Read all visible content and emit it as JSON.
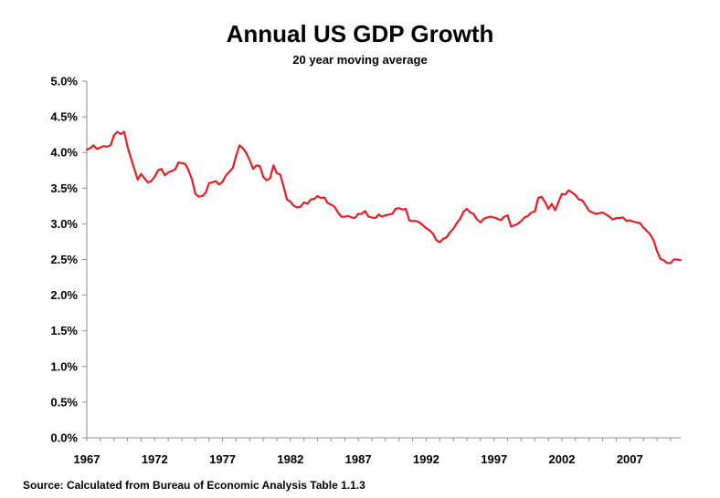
{
  "chart_data": {
    "type": "line",
    "title": "Annual US GDP Growth",
    "subtitle": "20 year moving average",
    "source": "Source: Calculated from Bureau of Economic Analysis Table  1.1.3",
    "xlabel": "",
    "ylabel": "",
    "xlim": [
      1967,
      2010.75
    ],
    "ylim": [
      0,
      5
    ],
    "grid": false,
    "line_color": "#e31e24",
    "x_ticks": [
      1967,
      1972,
      1977,
      1982,
      1987,
      1992,
      1997,
      2002,
      2007
    ],
    "x_tick_labels": [
      "1967",
      "1972",
      "1977",
      "1982",
      "1987",
      "1992",
      "1997",
      "2002",
      "2007"
    ],
    "y_ticks": [
      0,
      0.5,
      1,
      1.5,
      2,
      2.5,
      3,
      3.5,
      4,
      4.5,
      5
    ],
    "y_tick_labels": [
      "0.0%",
      "0.5%",
      "1.0%",
      "1.5%",
      "2.0%",
      "2.5%",
      "3.0%",
      "3.5%",
      "4.0%",
      "4.5%",
      "5.0%"
    ],
    "series": [
      {
        "name": "20 year moving average",
        "x": [
          1967.0,
          1967.25,
          1967.5,
          1967.75,
          1968.0,
          1968.25,
          1968.5,
          1968.75,
          1969.0,
          1969.25,
          1969.5,
          1969.75,
          1970.0,
          1970.25,
          1970.5,
          1970.75,
          1971.0,
          1971.25,
          1971.5,
          1971.75,
          1972.0,
          1972.25,
          1972.5,
          1972.75,
          1973.0,
          1973.25,
          1973.5,
          1973.75,
          1974.0,
          1974.25,
          1974.5,
          1974.75,
          1975.0,
          1975.25,
          1975.5,
          1975.75,
          1976.0,
          1976.25,
          1976.5,
          1976.75,
          1977.0,
          1977.25,
          1977.5,
          1977.75,
          1978.0,
          1978.25,
          1978.5,
          1978.75,
          1979.0,
          1979.25,
          1979.5,
          1979.75,
          1980.0,
          1980.25,
          1980.5,
          1980.75,
          1981.0,
          1981.25,
          1981.5,
          1981.75,
          1982.0,
          1982.25,
          1982.5,
          1982.75,
          1983.0,
          1983.25,
          1983.5,
          1983.75,
          1984.0,
          1984.25,
          1984.5,
          1984.75,
          1985.0,
          1985.25,
          1985.5,
          1985.75,
          1986.0,
          1986.25,
          1986.5,
          1986.75,
          1987.0,
          1987.25,
          1987.5,
          1987.75,
          1988.0,
          1988.25,
          1988.5,
          1988.75,
          1989.0,
          1989.25,
          1989.5,
          1989.75,
          1990.0,
          1990.25,
          1990.5,
          1990.75,
          1991.0,
          1991.25,
          1991.5,
          1991.75,
          1992.0,
          1992.25,
          1992.5,
          1992.75,
          1993.0,
          1993.25,
          1993.5,
          1993.75,
          1994.0,
          1994.25,
          1994.5,
          1994.75,
          1995.0,
          1995.25,
          1995.5,
          1995.75,
          1996.0,
          1996.25,
          1996.5,
          1996.75,
          1997.0,
          1997.25,
          1997.5,
          1997.75,
          1998.0,
          1998.25,
          1998.5,
          1998.75,
          1999.0,
          1999.25,
          1999.5,
          1999.75,
          2000.0,
          2000.25,
          2000.5,
          2000.75,
          2001.0,
          2001.25,
          2001.5,
          2001.75,
          2002.0,
          2002.25,
          2002.5,
          2002.75,
          2003.0,
          2003.25,
          2003.5,
          2003.75,
          2004.0,
          2004.25,
          2004.5,
          2004.75,
          2005.0,
          2005.25,
          2005.5,
          2005.75,
          2006.0,
          2006.25,
          2006.5,
          2006.75,
          2007.0,
          2007.25,
          2007.5,
          2007.75,
          2008.0,
          2008.25,
          2008.5,
          2008.75,
          2009.0,
          2009.25,
          2009.5,
          2009.75,
          2010.0,
          2010.25,
          2010.5,
          2010.75
        ],
        "y": [
          4.04,
          4.06,
          4.1,
          4.05,
          4.07,
          4.09,
          4.08,
          4.1,
          4.24,
          4.29,
          4.26,
          4.29,
          4.08,
          3.92,
          3.77,
          3.62,
          3.7,
          3.64,
          3.58,
          3.6,
          3.66,
          3.75,
          3.77,
          3.68,
          3.72,
          3.74,
          3.76,
          3.86,
          3.85,
          3.84,
          3.75,
          3.62,
          3.42,
          3.38,
          3.39,
          3.43,
          3.57,
          3.58,
          3.6,
          3.55,
          3.59,
          3.68,
          3.73,
          3.78,
          3.95,
          4.1,
          4.06,
          3.99,
          3.89,
          3.77,
          3.82,
          3.81,
          3.66,
          3.61,
          3.64,
          3.82,
          3.71,
          3.69,
          3.52,
          3.34,
          3.31,
          3.25,
          3.23,
          3.24,
          3.3,
          3.28,
          3.34,
          3.35,
          3.39,
          3.36,
          3.37,
          3.29,
          3.27,
          3.24,
          3.16,
          3.1,
          3.1,
          3.11,
          3.09,
          3.08,
          3.14,
          3.14,
          3.18,
          3.1,
          3.09,
          3.08,
          3.13,
          3.1,
          3.12,
          3.13,
          3.14,
          3.21,
          3.22,
          3.2,
          3.21,
          3.05,
          3.04,
          3.04,
          3.02,
          2.98,
          2.94,
          2.91,
          2.86,
          2.77,
          2.74,
          2.79,
          2.81,
          2.88,
          2.93,
          3.01,
          3.07,
          3.17,
          3.21,
          3.16,
          3.14,
          3.06,
          3.02,
          3.07,
          3.09,
          3.1,
          3.09,
          3.07,
          3.05,
          3.1,
          3.12,
          2.96,
          2.98,
          3.0,
          3.04,
          3.09,
          3.11,
          3.16,
          3.17,
          3.36,
          3.38,
          3.31,
          3.21,
          3.28,
          3.19,
          3.31,
          3.42,
          3.41,
          3.47,
          3.44,
          3.4,
          3.34,
          3.33,
          3.26,
          3.18,
          3.16,
          3.14,
          3.15,
          3.16,
          3.13,
          3.1,
          3.06,
          3.08,
          3.08,
          3.09,
          3.04,
          3.05,
          3.03,
          3.02,
          3.01,
          2.95,
          2.9,
          2.85,
          2.77,
          2.62,
          2.51,
          2.49,
          2.45,
          2.45,
          2.5,
          2.5,
          2.49
        ]
      }
    ]
  }
}
